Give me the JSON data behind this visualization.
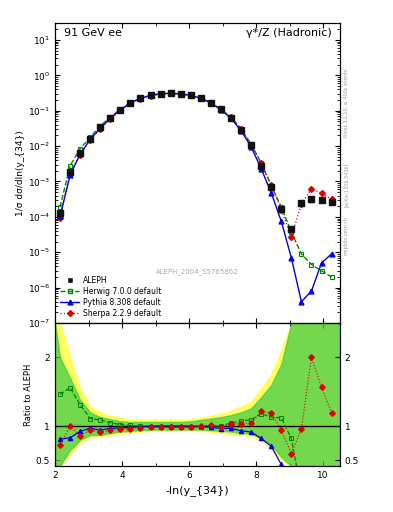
{
  "title_left": "91 GeV ee",
  "title_right": "γ*/Z (Hadronic)",
  "ylabel_main": "1/σ dσ/dln(y_{34})",
  "ylabel_ratio": "Ratio to ALEPH",
  "xlabel": "-ln(y_{34})",
  "watermark": "ALEPH_2004_S5765862",
  "xlim": [
    2,
    10.5
  ],
  "ylim_main": [
    1e-07,
    30
  ],
  "ylim_ratio": [
    0.42,
    2.5
  ],
  "ratio_yticks": [
    0.5,
    1.0,
    2.0
  ],
  "aleph_color": "#111111",
  "herwig_color": "#008800",
  "pythia_color": "#0000ee",
  "sherpa_color": "#dd0000",
  "band_yellow": "#ffff44",
  "band_green": "#44cc44",
  "aleph_x": [
    2.15,
    2.45,
    2.75,
    3.05,
    3.35,
    3.65,
    3.95,
    4.25,
    4.55,
    4.85,
    5.15,
    5.45,
    5.75,
    6.05,
    6.35,
    6.65,
    6.95,
    7.25,
    7.55,
    7.85,
    8.15,
    8.45,
    8.75,
    9.05,
    9.35,
    9.65,
    9.95,
    10.25
  ],
  "aleph_y": [
    0.00013,
    0.0018,
    0.0065,
    0.016,
    0.034,
    0.063,
    0.108,
    0.168,
    0.225,
    0.272,
    0.302,
    0.312,
    0.302,
    0.272,
    0.225,
    0.168,
    0.11,
    0.063,
    0.029,
    0.0105,
    0.0028,
    0.00068,
    0.00017,
    4.5e-05,
    0.00024,
    0.00031,
    0.0003,
    0.00026
  ],
  "aleph_yerr": [
    1.5e-05,
    8e-05,
    0.00025,
    0.0004,
    0.0007,
    0.0011,
    0.0016,
    0.0022,
    0.0027,
    0.0032,
    0.0035,
    0.0037,
    0.0035,
    0.0032,
    0.0027,
    0.0022,
    0.0018,
    0.0011,
    0.00055,
    0.00022,
    7e-05,
    1.8e-05,
    5.5e-06,
    7e-06,
    2.8e-05,
    3.8e-05,
    4.5e-05,
    3.5e-05
  ],
  "herwig_x": [
    2.15,
    2.45,
    2.75,
    3.05,
    3.35,
    3.65,
    3.95,
    4.25,
    4.55,
    4.85,
    5.15,
    5.45,
    5.75,
    6.05,
    6.35,
    6.65,
    6.95,
    7.25,
    7.55,
    7.85,
    8.15,
    8.45,
    8.75,
    9.05,
    9.35,
    9.65,
    9.95,
    10.25
  ],
  "herwig_y": [
    0.00019,
    0.0028,
    0.0085,
    0.0178,
    0.037,
    0.066,
    0.11,
    0.17,
    0.224,
    0.269,
    0.298,
    0.307,
    0.297,
    0.267,
    0.223,
    0.169,
    0.11,
    0.066,
    0.031,
    0.0115,
    0.0033,
    0.00077,
    0.00019,
    3.7e-05,
    9e-06,
    4.5e-06,
    3e-06,
    2e-06
  ],
  "pythia_x": [
    2.15,
    2.45,
    2.75,
    3.05,
    3.35,
    3.65,
    3.95,
    4.25,
    4.55,
    4.85,
    5.15,
    5.45,
    5.75,
    6.05,
    6.35,
    6.65,
    6.95,
    7.25,
    7.55,
    7.85,
    8.15,
    8.45,
    8.75,
    9.05,
    9.35,
    9.65,
    9.95,
    10.25
  ],
  "pythia_y": [
    0.000105,
    0.0015,
    0.006,
    0.0155,
    0.032,
    0.061,
    0.105,
    0.165,
    0.223,
    0.272,
    0.302,
    0.312,
    0.302,
    0.272,
    0.224,
    0.165,
    0.106,
    0.061,
    0.027,
    0.0096,
    0.0023,
    0.00048,
    7.5e-05,
    7e-06,
    4e-07,
    8e-07,
    5e-06,
    9e-06
  ],
  "sherpa_x": [
    2.15,
    2.45,
    2.75,
    3.05,
    3.35,
    3.65,
    3.95,
    4.25,
    4.55,
    4.85,
    5.15,
    5.45,
    5.75,
    6.05,
    6.35,
    6.65,
    6.95,
    7.25,
    7.55,
    7.85,
    8.15,
    8.45,
    8.75,
    9.05,
    9.35,
    9.65,
    9.95,
    10.25
  ],
  "sherpa_y": [
    9.5e-05,
    0.0018,
    0.0056,
    0.015,
    0.031,
    0.059,
    0.103,
    0.162,
    0.22,
    0.267,
    0.297,
    0.307,
    0.299,
    0.269,
    0.225,
    0.17,
    0.109,
    0.065,
    0.03,
    0.011,
    0.0034,
    0.00081,
    0.00016,
    2.7e-05,
    0.00023,
    0.00062,
    0.00047,
    0.00031
  ],
  "herwig_ratio": [
    1.46,
    1.56,
    1.31,
    1.11,
    1.09,
    1.05,
    1.02,
    1.01,
    0.995,
    0.989,
    0.987,
    0.984,
    0.983,
    0.981,
    0.991,
    1.006,
    1.0,
    1.048,
    1.069,
    1.095,
    1.18,
    1.13,
    1.12,
    0.82,
    0.037,
    0.0145,
    0.01,
    0.0077
  ],
  "pythia_ratio": [
    0.81,
    0.83,
    0.923,
    0.969,
    0.941,
    0.968,
    0.972,
    0.982,
    0.991,
    1.0,
    1.0,
    1.0,
    1.0,
    1.0,
    0.996,
    0.982,
    0.964,
    0.968,
    0.931,
    0.914,
    0.821,
    0.706,
    0.441,
    0.156,
    0.00167,
    0.00258,
    0.0167,
    0.0346
  ],
  "sherpa_ratio": [
    0.731,
    1.0,
    0.862,
    0.938,
    0.912,
    0.937,
    0.954,
    0.964,
    0.978,
    0.982,
    0.983,
    0.984,
    0.99,
    0.989,
    1.0,
    1.012,
    0.991,
    1.032,
    1.034,
    1.048,
    1.214,
    1.191,
    0.941,
    0.6,
    0.958,
    2.0,
    1.567,
    1.192
  ],
  "band_x": [
    2.0,
    2.15,
    2.45,
    2.75,
    3.05,
    3.35,
    3.65,
    3.95,
    4.25,
    4.55,
    4.85,
    5.15,
    5.45,
    5.75,
    6.05,
    6.35,
    6.65,
    6.95,
    7.25,
    7.55,
    7.85,
    8.15,
    8.45,
    8.75,
    9.05,
    9.35,
    9.65,
    9.95,
    10.25,
    10.5
  ],
  "band_yellow_lo": [
    0.42,
    0.42,
    0.6,
    0.76,
    0.84,
    0.85,
    0.87,
    0.89,
    0.91,
    0.92,
    0.93,
    0.93,
    0.93,
    0.93,
    0.93,
    0.93,
    0.92,
    0.9,
    0.89,
    0.87,
    0.86,
    0.78,
    0.68,
    0.5,
    0.42,
    0.42,
    0.42,
    0.42,
    0.42,
    0.42
  ],
  "band_yellow_hi": [
    2.5,
    2.5,
    2.0,
    1.55,
    1.28,
    1.2,
    1.15,
    1.12,
    1.1,
    1.09,
    1.09,
    1.09,
    1.09,
    1.09,
    1.1,
    1.12,
    1.15,
    1.18,
    1.22,
    1.28,
    1.35,
    1.55,
    1.75,
    2.1,
    2.5,
    2.5,
    2.5,
    2.5,
    2.5,
    2.5
  ],
  "band_green_lo": [
    0.42,
    0.42,
    0.65,
    0.8,
    0.87,
    0.87,
    0.9,
    0.92,
    0.93,
    0.94,
    0.95,
    0.95,
    0.95,
    0.95,
    0.95,
    0.95,
    0.94,
    0.93,
    0.92,
    0.9,
    0.89,
    0.82,
    0.73,
    0.55,
    0.42,
    0.42,
    0.42,
    0.42,
    0.42,
    0.42
  ],
  "band_green_hi": [
    2.5,
    2.0,
    1.7,
    1.38,
    1.2,
    1.13,
    1.1,
    1.07,
    1.06,
    1.06,
    1.06,
    1.06,
    1.06,
    1.06,
    1.07,
    1.09,
    1.11,
    1.13,
    1.16,
    1.2,
    1.26,
    1.42,
    1.6,
    1.9,
    2.5,
    2.5,
    2.5,
    2.5,
    2.5,
    2.5
  ]
}
